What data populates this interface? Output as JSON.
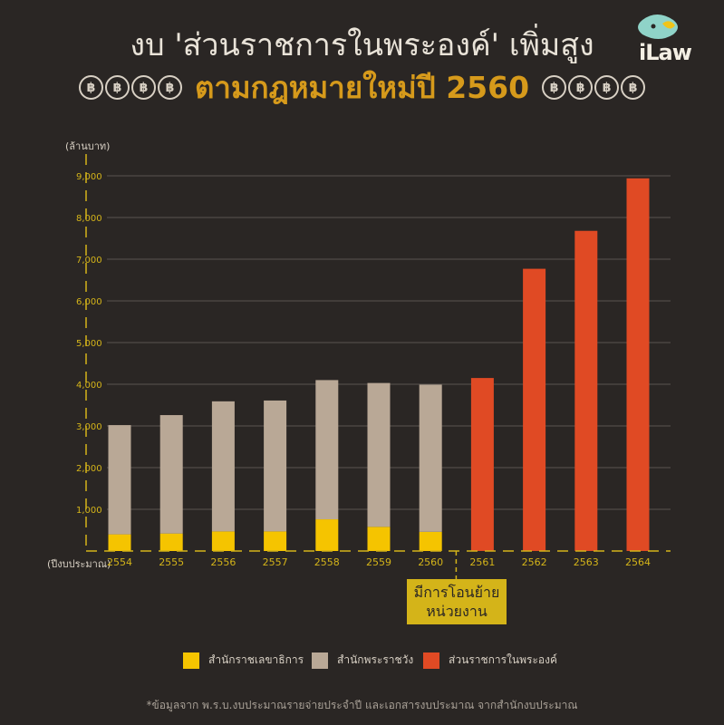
{
  "header": {
    "title_line1": "งบ 'ส่วนราชการในพระองค์' เพิ่มสูง",
    "title_line2": "ตามกฎหมายใหม่ปี 2560",
    "coin_symbol": "฿",
    "logo_text": "iLaw"
  },
  "chart_data": {
    "type": "bar",
    "stacked": true,
    "unit_label": "(ล้านบาท)",
    "x_label": "(ปีงบประมาณ)",
    "categories": [
      "2554",
      "2555",
      "2556",
      "2557",
      "2558",
      "2559",
      "2560",
      "2561",
      "2562",
      "2563",
      "2564"
    ],
    "y_ticks": [
      "1,000",
      "2,000",
      "3,000",
      "4,000",
      "5,000",
      "6,000",
      "7,000",
      "8,000",
      "9,000"
    ],
    "ylim": [
      0,
      9000
    ],
    "series": [
      {
        "name": "สำนักราชเลขาธิการ",
        "color": "#f5c400",
        "values": [
          400,
          420,
          470,
          470,
          760,
          580,
          460,
          0,
          0,
          0,
          0
        ]
      },
      {
        "name": "สำนักพระราชวัง",
        "color": "#b9a896",
        "values": [
          2620,
          2840,
          3120,
          3140,
          3340,
          3450,
          3530,
          0,
          0,
          0,
          0
        ]
      },
      {
        "name": "ส่วนราชการในพระองค์",
        "color": "#e04a24",
        "values": [
          0,
          0,
          0,
          0,
          0,
          0,
          0,
          4150,
          6770,
          7680,
          8940
        ]
      }
    ],
    "annotation": "มีการโอนย้ายหน่วยงาน",
    "grid": true
  },
  "annotation": {
    "line1": "มีการโอนย้าย",
    "line2": "หน่วยงาน"
  },
  "legend": [
    {
      "label": "สำนักราชเลขาธิการ",
      "color": "#f5c400"
    },
    {
      "label": "สำนักพระราชวัง",
      "color": "#b9a896"
    },
    {
      "label": "ส่วนราชการในพระองค์",
      "color": "#e04a24"
    }
  ],
  "footer": {
    "source": "*ข้อมูลจาก พ.ร.บ.งบประมาณรายจ่ายประจำปี และเอกสารงบประมาณ จากสำนักงบประมาณ"
  }
}
